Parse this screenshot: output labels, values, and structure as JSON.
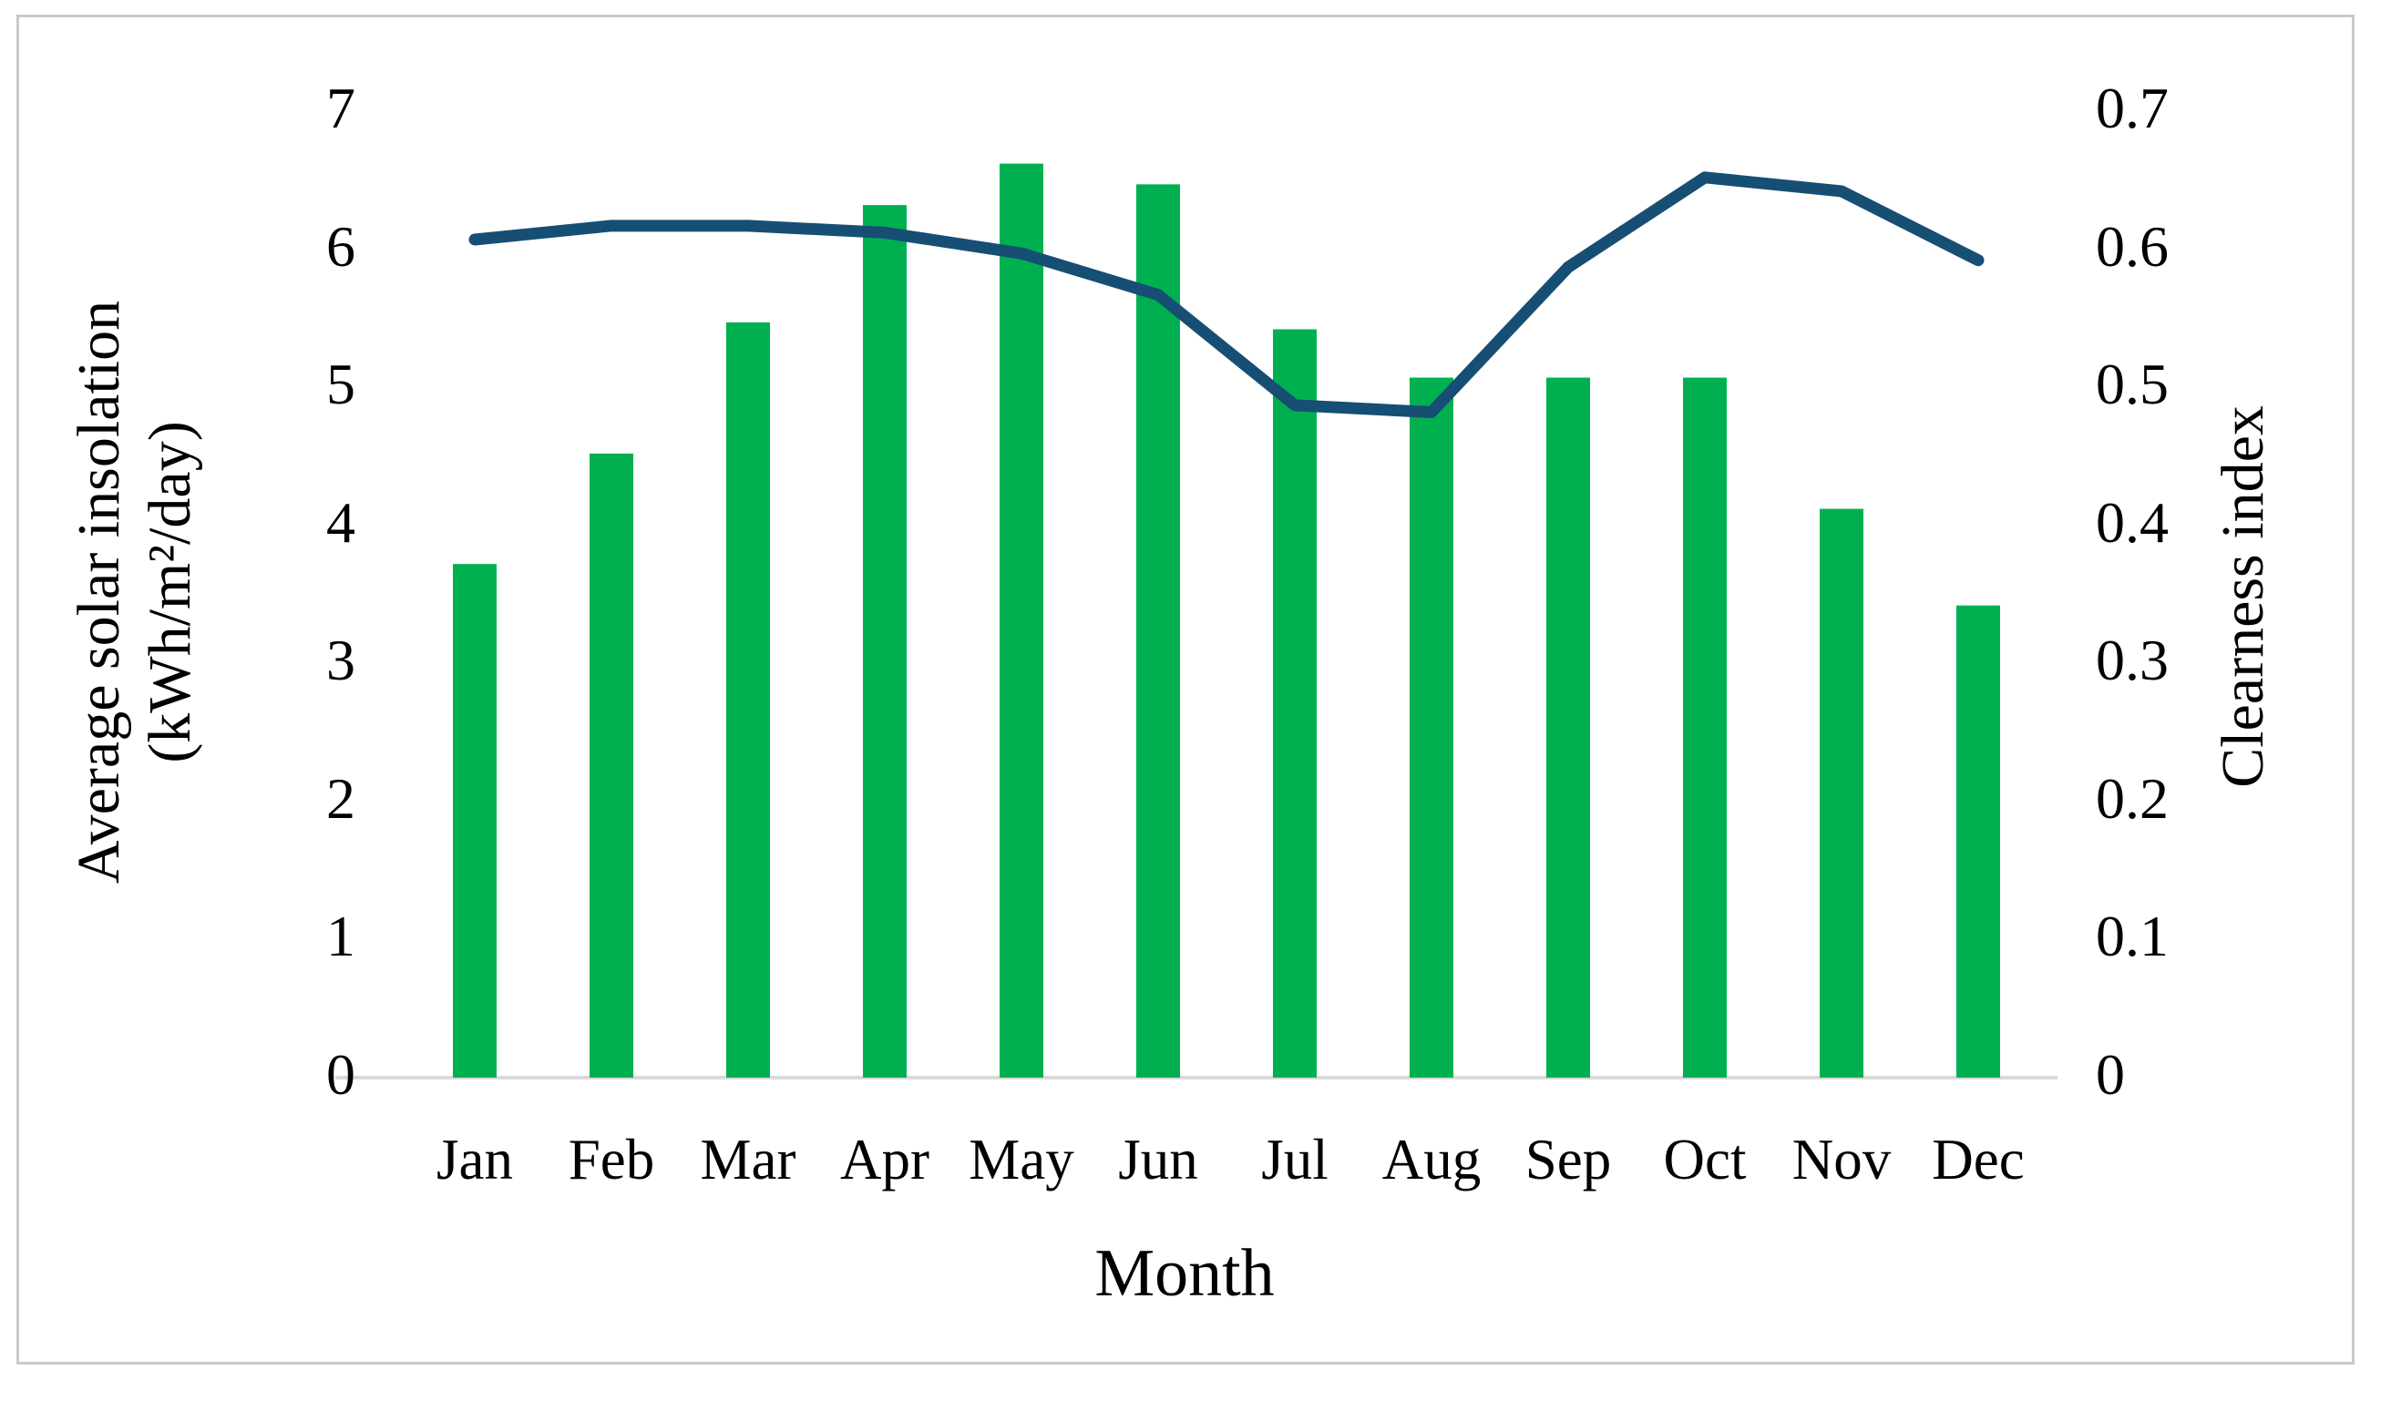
{
  "figure": {
    "x_axis": {
      "title": "Month"
    },
    "left_axis": {
      "title_line1": "Average solar insolation",
      "title_line2": "(kWh/m²/day)",
      "tick_labels": [
        "0",
        "1",
        "2",
        "3",
        "4",
        "5",
        "6",
        "7"
      ],
      "min": 0,
      "max": 7
    },
    "right_axis": {
      "title": "Clearness index",
      "tick_labels": [
        "0",
        "0.1",
        "0.2",
        "0.3",
        "0.4",
        "0.5",
        "0.6",
        "0.7"
      ],
      "min": 0,
      "max": 0.7
    }
  },
  "colors": {
    "bar_green": "#00B050",
    "line_navy": "#174E74",
    "axis_line_gray": "#D9D9D9",
    "frame_gray": "#C9C9C9",
    "text_black": "#000000"
  },
  "chart_data": {
    "type": "bar",
    "subtype": "combo-bar-line-dual-axis",
    "title": "",
    "xlabel": "Month",
    "ylabel_left": "Average solar insolation (kWh/m²/day)",
    "ylabel_right": "Clearness index",
    "ylim_left": [
      0,
      7
    ],
    "ylim_right": [
      0,
      0.7
    ],
    "grid": false,
    "legend": "none",
    "categories": [
      "Jan",
      "Feb",
      "Mar",
      "Apr",
      "May",
      "Jun",
      "Jul",
      "Aug",
      "Sep",
      "Oct",
      "Nov",
      "Dec"
    ],
    "series": [
      {
        "name": "Average solar insolation (kWh/m²/day)",
        "type": "bar",
        "axis": "left",
        "color": "#00B050",
        "values": [
          3.7,
          4.5,
          5.45,
          6.3,
          6.6,
          6.45,
          5.4,
          5.05,
          5.05,
          5.05,
          4.1,
          3.4
        ]
      },
      {
        "name": "Clearness index",
        "type": "line",
        "axis": "right",
        "color": "#174E74",
        "values": [
          0.605,
          0.615,
          0.615,
          0.61,
          0.595,
          0.565,
          0.485,
          0.48,
          0.585,
          0.65,
          0.64,
          0.59
        ]
      }
    ]
  }
}
